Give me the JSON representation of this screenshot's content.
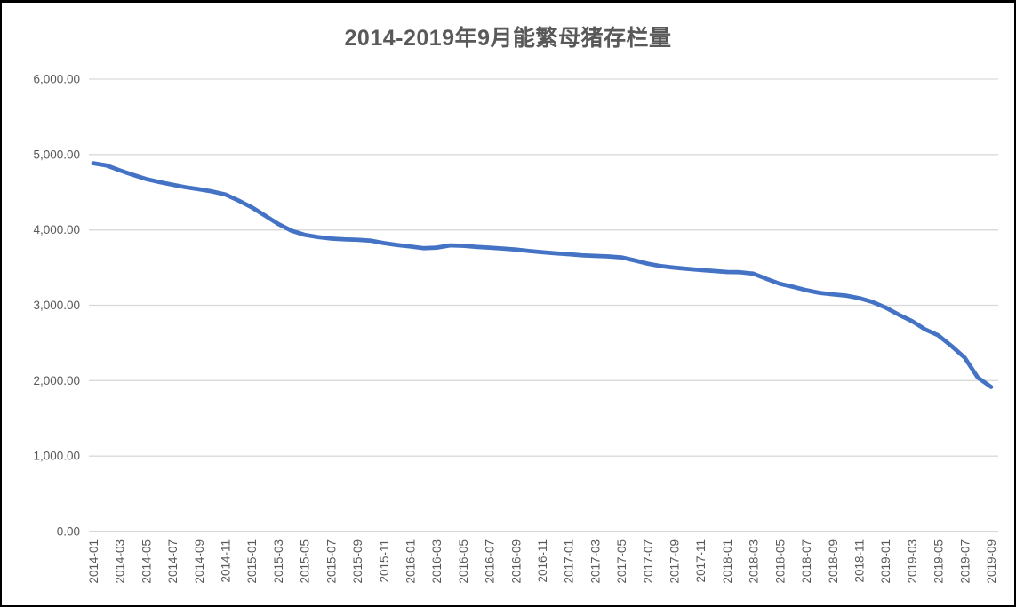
{
  "page": {
    "background_color": "#ffffff",
    "frame_border_color": "#000000"
  },
  "chart_data": {
    "type": "line",
    "title": "2014-2019年9月能繁母猪存栏量",
    "legend": "none",
    "grid": true,
    "ylim": [
      0,
      6000
    ],
    "y_tick_step": 1000,
    "y_tick_labels": [
      "0.00",
      "1,000.00",
      "2,000.00",
      "3,000.00",
      "4,000.00",
      "5,000.00",
      "6,000.00"
    ],
    "x_tick_labels": [
      "2014-01",
      "2014-03",
      "2014-05",
      "2014-07",
      "2014-09",
      "2014-11",
      "2015-01",
      "2015-03",
      "2015-05",
      "2015-07",
      "2015-09",
      "2015-11",
      "2016-01",
      "2016-03",
      "2016-05",
      "2016-07",
      "2016-09",
      "2016-11",
      "2017-01",
      "2017-03",
      "2017-05",
      "2017-07",
      "2017-09",
      "2017-11",
      "2018-01",
      "2018-03",
      "2018-05",
      "2018-07",
      "2018-09",
      "2018-11",
      "2019-01",
      "2019-03",
      "2019-05",
      "2019-07",
      "2019-09"
    ],
    "categories": [
      "2014-01",
      "2014-02",
      "2014-03",
      "2014-04",
      "2014-05",
      "2014-06",
      "2014-07",
      "2014-08",
      "2014-09",
      "2014-10",
      "2014-11",
      "2014-12",
      "2015-01",
      "2015-02",
      "2015-03",
      "2015-04",
      "2015-05",
      "2015-06",
      "2015-07",
      "2015-08",
      "2015-09",
      "2015-10",
      "2015-11",
      "2015-12",
      "2016-01",
      "2016-02",
      "2016-03",
      "2016-04",
      "2016-05",
      "2016-06",
      "2016-07",
      "2016-08",
      "2016-09",
      "2016-10",
      "2016-11",
      "2016-12",
      "2017-01",
      "2017-02",
      "2017-03",
      "2017-04",
      "2017-05",
      "2017-06",
      "2017-07",
      "2017-08",
      "2017-09",
      "2017-10",
      "2017-11",
      "2017-12",
      "2018-01",
      "2018-02",
      "2018-03",
      "2018-04",
      "2018-05",
      "2018-06",
      "2018-07",
      "2018-08",
      "2018-09",
      "2018-10",
      "2018-11",
      "2018-12",
      "2019-01",
      "2019-02",
      "2019-03",
      "2019-04",
      "2019-05",
      "2019-06",
      "2019-07",
      "2019-08",
      "2019-09"
    ],
    "values": [
      4885,
      4855,
      4790,
      4730,
      4675,
      4635,
      4600,
      4565,
      4540,
      4510,
      4470,
      4390,
      4300,
      4190,
      4080,
      3990,
      3935,
      3905,
      3885,
      3875,
      3870,
      3858,
      3825,
      3800,
      3780,
      3758,
      3765,
      3795,
      3790,
      3775,
      3765,
      3753,
      3740,
      3720,
      3705,
      3690,
      3678,
      3663,
      3655,
      3648,
      3635,
      3595,
      3552,
      3520,
      3500,
      3483,
      3468,
      3455,
      3442,
      3438,
      3420,
      3350,
      3285,
      3245,
      3200,
      3165,
      3145,
      3128,
      3095,
      3045,
      2970,
      2875,
      2790,
      2680,
      2600,
      2460,
      2305,
      2040,
      1915
    ],
    "series_color": "#4472C4",
    "gridline_color": "#D9D9D9",
    "axis_line_color": "#BFBFBF",
    "tick_label_color": "#595959",
    "title_color": "#595959"
  }
}
